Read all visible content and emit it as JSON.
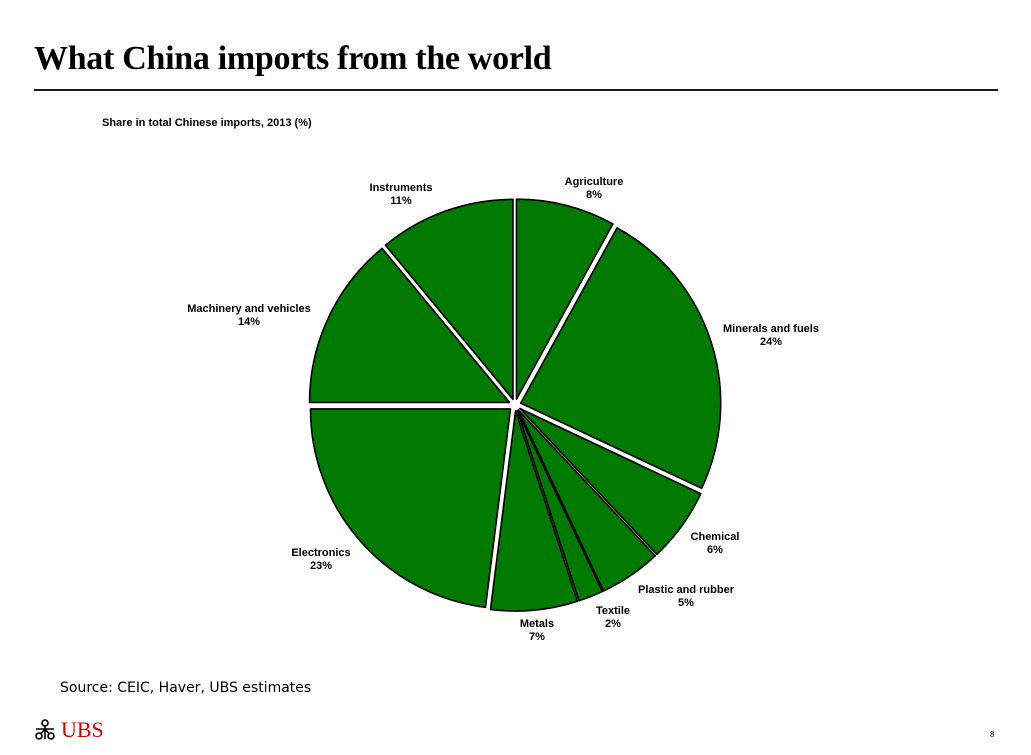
{
  "slide": {
    "title": "What China imports from the world",
    "source": "Source: CEIC, Haver, UBS estimates",
    "logo_text": "UBS",
    "page_number": "8"
  },
  "chart_data": {
    "type": "pie",
    "title": "Share in total Chinese imports, 2013 (%)",
    "unit": "%",
    "start_angle_deg": 0,
    "direction": "clockwise",
    "exploded": true,
    "slice_color": "#007a00",
    "slices": [
      {
        "label": "Agriculture",
        "value": 8
      },
      {
        "label": "Minerals and fuels",
        "value": 24
      },
      {
        "label": "Chemical",
        "value": 6
      },
      {
        "label": "Plastic and rubber",
        "value": 5
      },
      {
        "label": "Textile",
        "value": 2
      },
      {
        "label": "Metals",
        "value": 7
      },
      {
        "label": "Electronics",
        "value": 23
      },
      {
        "label": "Machinery and vehicles",
        "value": 14
      },
      {
        "label": "Instruments",
        "value": 11
      }
    ]
  }
}
